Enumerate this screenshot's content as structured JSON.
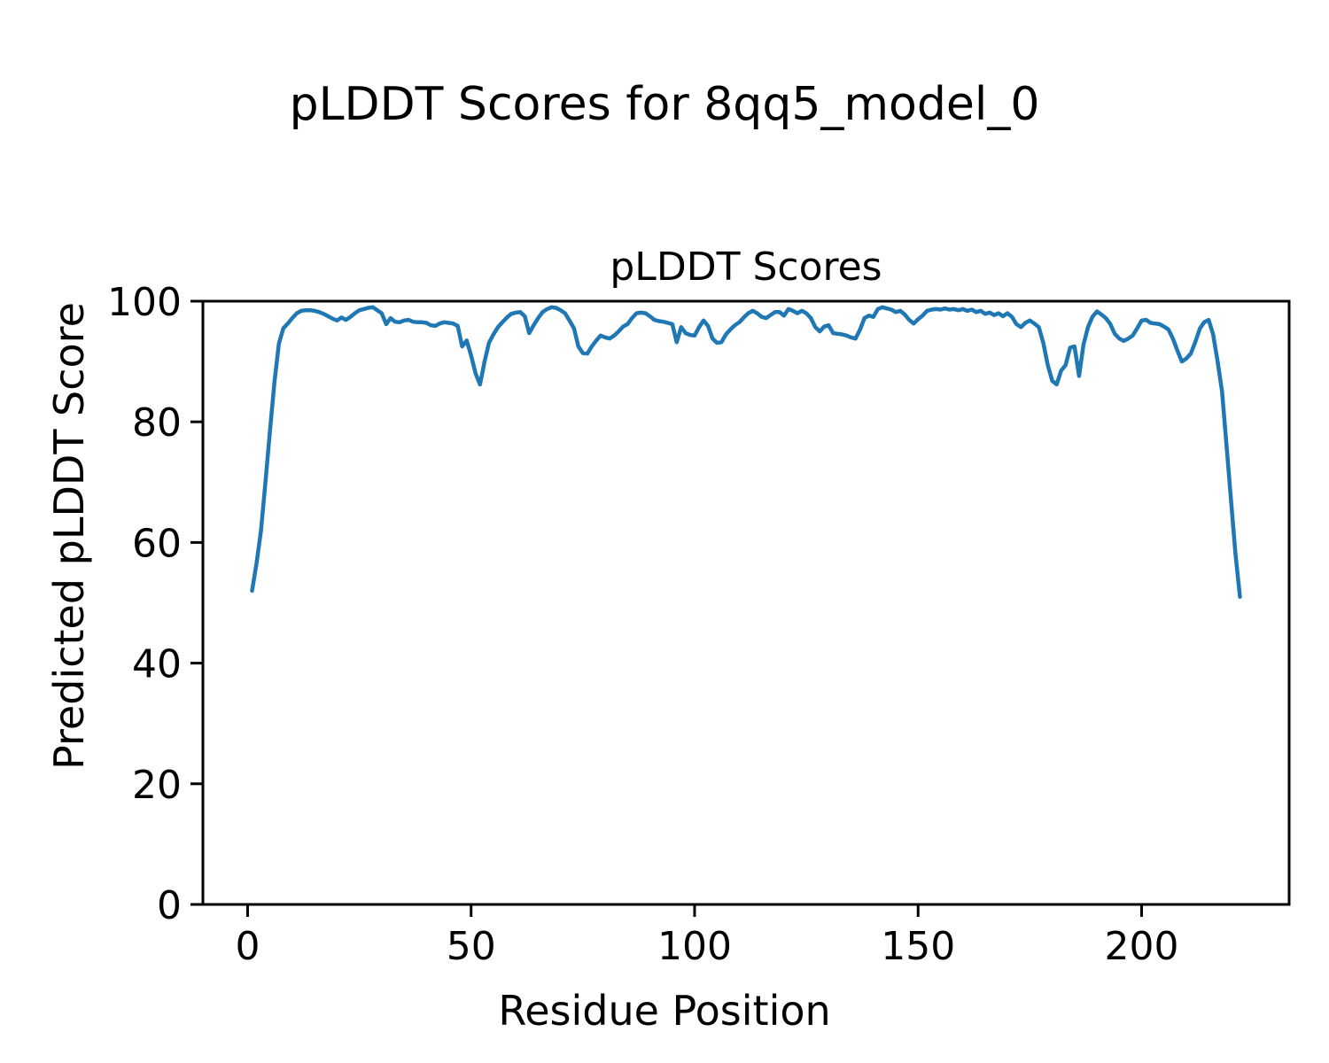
{
  "figure_title": "pLDDT Scores for 8qq5_model_0",
  "chart_data": {
    "type": "line",
    "title": "pLDDT Scores",
    "xlabel": "Residue Position",
    "ylabel": "Predicted pLDDT Score",
    "xlim": [
      -10,
      233
    ],
    "ylim": [
      0,
      100
    ],
    "x_ticks": [
      0,
      50,
      100,
      150,
      200
    ],
    "y_ticks": [
      0,
      20,
      40,
      60,
      80,
      100
    ],
    "grid": false,
    "legend_position": "none",
    "series": [
      {
        "name": "pLDDT",
        "color": "#1f77b4",
        "x_start": 1,
        "x_step": 1,
        "n_points": 222,
        "y": [
          52.0,
          56.5,
          62.0,
          70.0,
          78.5,
          86.5,
          93.0,
          95.5,
          96.3,
          97.2,
          98.0,
          98.4,
          98.5,
          98.5,
          98.4,
          98.2,
          97.9,
          97.5,
          97.1,
          96.8,
          97.3,
          96.9,
          97.4,
          98.0,
          98.5,
          98.7,
          98.9,
          99.0,
          98.5,
          98.0,
          96.2,
          97.2,
          96.6,
          96.5,
          96.8,
          96.9,
          96.6,
          96.5,
          96.5,
          96.4,
          96.0,
          95.9,
          96.3,
          96.5,
          96.4,
          96.3,
          95.9,
          92.5,
          93.5,
          91.0,
          88.0,
          86.2,
          90.0,
          93.1,
          94.5,
          95.7,
          96.5,
          97.3,
          97.9,
          98.1,
          98.2,
          97.5,
          94.7,
          96.0,
          97.2,
          98.2,
          98.7,
          99.0,
          98.9,
          98.5,
          98.0,
          96.8,
          95.5,
          92.5,
          91.4,
          91.3,
          92.5,
          93.5,
          94.3,
          94.0,
          93.8,
          94.3,
          95.0,
          95.8,
          96.2,
          97.2,
          98.0,
          98.1,
          98.0,
          97.5,
          96.9,
          96.7,
          96.6,
          96.4,
          96.2,
          93.2,
          95.7,
          94.7,
          94.4,
          94.3,
          95.7,
          96.8,
          95.9,
          93.8,
          93.1,
          93.2,
          94.5,
          95.3,
          96.0,
          96.5,
          97.3,
          98.0,
          98.4,
          98.0,
          97.4,
          97.2,
          97.7,
          98.2,
          98.2,
          97.6,
          98.7,
          98.4,
          98.0,
          98.4,
          98.0,
          97.2,
          95.7,
          95.0,
          95.8,
          96.0,
          94.7,
          94.6,
          94.5,
          94.3,
          94.0,
          93.8,
          95.3,
          97.2,
          97.6,
          97.4,
          98.7,
          99.0,
          98.8,
          98.6,
          98.2,
          98.4,
          97.8,
          96.9,
          96.3,
          97.0,
          97.6,
          98.4,
          98.6,
          98.7,
          98.6,
          98.8,
          98.6,
          98.7,
          98.5,
          98.7,
          98.4,
          98.6,
          98.2,
          98.4,
          97.9,
          98.1,
          97.7,
          98.0,
          97.5,
          98.0,
          97.4,
          96.2,
          95.7,
          96.4,
          96.8,
          96.3,
          95.7,
          93.1,
          89.4,
          86.8,
          86.2,
          88.5,
          89.4,
          92.3,
          92.5,
          87.6,
          92.8,
          95.7,
          97.4,
          98.3,
          97.8,
          97.2,
          96.2,
          94.6,
          93.8,
          93.4,
          93.8,
          94.3,
          95.5,
          96.8,
          96.9,
          96.4,
          96.3,
          96.2,
          95.8,
          95.3,
          93.8,
          91.8,
          90.0,
          90.5,
          91.3,
          93.2,
          95.4,
          96.5,
          96.9,
          94.5,
          90.0,
          85.0,
          76.0,
          67.0,
          58.0,
          51.0
        ]
      }
    ]
  }
}
